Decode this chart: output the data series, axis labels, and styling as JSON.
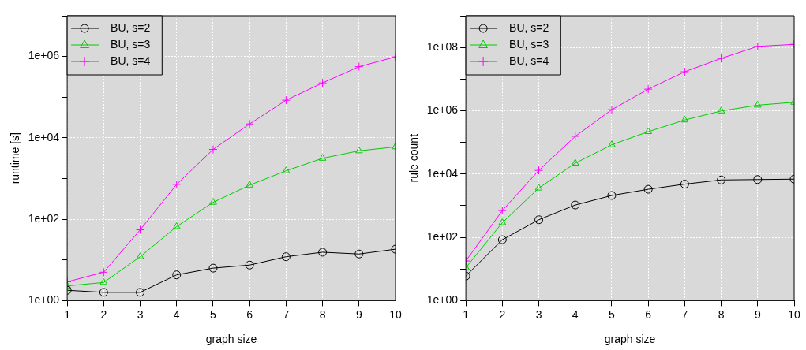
{
  "chart_data": [
    {
      "type": "line",
      "xlabel": "graph size",
      "ylabel": "runtime [s]",
      "log": "y",
      "grid": true,
      "legend": "top left",
      "x": [
        1,
        2,
        3,
        4,
        5,
        6,
        7,
        8,
        9,
        10
      ],
      "xlim": [
        1,
        10
      ],
      "xticks": [
        1,
        2,
        3,
        4,
        5,
        6,
        7,
        8,
        9,
        10
      ],
      "ylim": [
        1,
        10000000
      ],
      "yticks": [
        {
          "value": 1,
          "label": "1e+00"
        },
        {
          "value": 10,
          "label": null
        },
        {
          "value": 100,
          "label": "1e+02"
        },
        {
          "value": 1000,
          "label": null
        },
        {
          "value": 10000,
          "label": "1e+04"
        },
        {
          "value": 100000,
          "label": null
        },
        {
          "value": 1000000,
          "label": "1e+06"
        },
        {
          "value": 10000000,
          "label": null
        }
      ],
      "series": [
        {
          "name": "BU, s=2",
          "color": "#000000",
          "marker": "circle",
          "values": [
            1.8,
            1.6,
            1.6,
            4.3,
            6.3,
            7.5,
            12,
            15.5,
            14,
            18.4
          ]
        },
        {
          "name": "BU, s=3",
          "color": "#00cd00",
          "marker": "triangle",
          "values": [
            2.3,
            2.8,
            12,
            66,
            260,
            690,
            1550,
            3150,
            4800,
            6000
          ]
        },
        {
          "name": "BU, s=4",
          "color": "#ff00ff",
          "marker": "cross",
          "values": [
            2.9,
            5,
            55,
            720,
            5200,
            22000,
            84000,
            224000,
            560000,
            980000
          ]
        }
      ]
    },
    {
      "type": "line",
      "xlabel": "graph size",
      "ylabel": "rule count",
      "log": "y",
      "grid": true,
      "legend": "top left",
      "x": [
        1,
        2,
        3,
        4,
        5,
        6,
        7,
        8,
        9,
        10
      ],
      "xlim": [
        1,
        10
      ],
      "xticks": [
        1,
        2,
        3,
        4,
        5,
        6,
        7,
        8,
        9,
        10
      ],
      "ylim": [
        1,
        1000000000
      ],
      "yticks": [
        {
          "value": 1,
          "label": "1e+00"
        },
        {
          "value": 10,
          "label": null
        },
        {
          "value": 100,
          "label": "1e+02"
        },
        {
          "value": 1000,
          "label": null
        },
        {
          "value": 10000,
          "label": "1e+04"
        },
        {
          "value": 100000,
          "label": null
        },
        {
          "value": 1000000,
          "label": "1e+06"
        },
        {
          "value": 10000000,
          "label": null
        },
        {
          "value": 100000000,
          "label": "1e+08"
        },
        {
          "value": 1000000000,
          "label": null
        }
      ],
      "series": [
        {
          "name": "BU, s=2",
          "color": "#000000",
          "marker": "circle",
          "values": [
            6,
            84,
            360,
            1050,
            2100,
            3300,
            4800,
            6500,
            6700,
            6900
          ]
        },
        {
          "name": "BU, s=3",
          "color": "#00cd00",
          "marker": "triangle",
          "values": [
            11,
            290,
            3600,
            22000,
            84000,
            218000,
            510000,
            980000,
            1500000,
            1850000
          ]
        },
        {
          "name": "BU, s=4",
          "color": "#ff00ff",
          "marker": "cross",
          "values": [
            18,
            700,
            13000,
            155000,
            1080000,
            4800000,
            17000000,
            45000000,
            108000000,
            125000000
          ]
        }
      ]
    }
  ]
}
